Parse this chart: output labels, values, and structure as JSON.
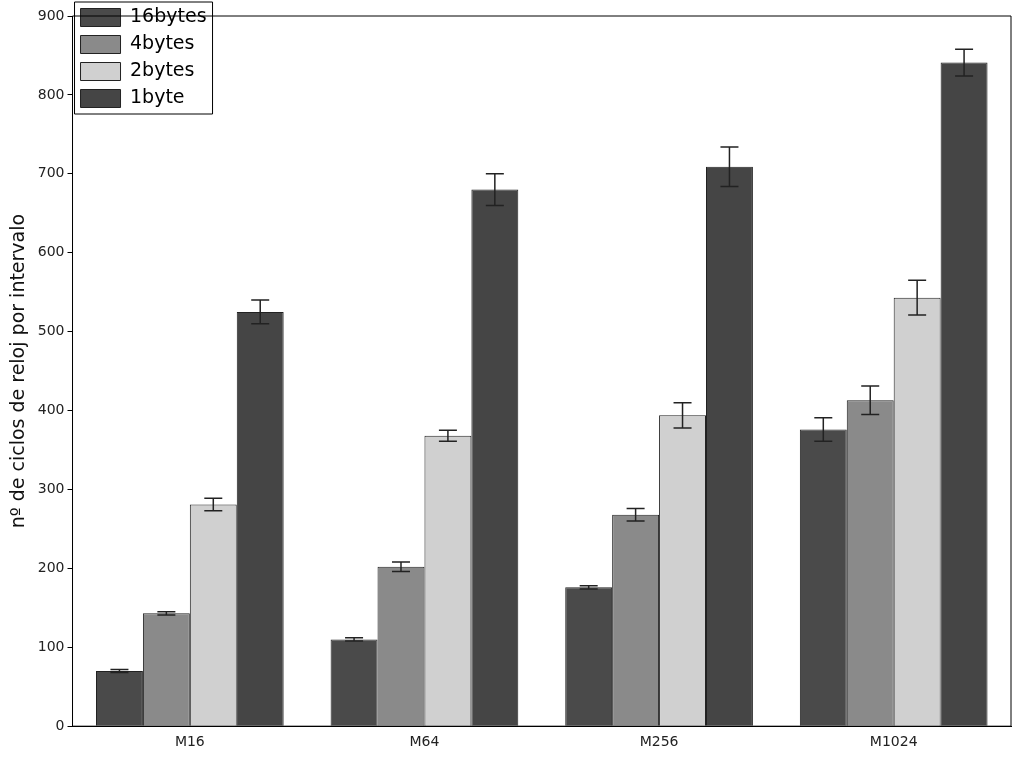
{
  "chart_data": {
    "type": "bar",
    "ylabel": "nº de ciclos de reloj por intervalo",
    "categories": [
      "M16",
      "M64",
      "M256",
      "M1024"
    ],
    "series": [
      {
        "name": "16bytes",
        "color": "#4a4a4a",
        "values": [
          70,
          110,
          176,
          376
        ],
        "errors": [
          2,
          2,
          2,
          15
        ]
      },
      {
        "name": "4bytes",
        "color": "#8a8a8a",
        "values": [
          143,
          202,
          268,
          413
        ],
        "errors": [
          2,
          6,
          8,
          18
        ]
      },
      {
        "name": "2bytes",
        "color": "#d0d0d0",
        "values": [
          281,
          368,
          394,
          543
        ],
        "errors": [
          8,
          7,
          16,
          22
        ]
      },
      {
        "name": "1byte",
        "color": "#454545",
        "values": [
          525,
          680,
          709,
          841
        ],
        "errors": [
          15,
          20,
          25,
          17
        ]
      }
    ],
    "ylim": [
      0,
      900
    ],
    "yticks": [
      0,
      100,
      200,
      300,
      400,
      500,
      600,
      700,
      800,
      900
    ],
    "grid": false,
    "legend": "top left"
  }
}
